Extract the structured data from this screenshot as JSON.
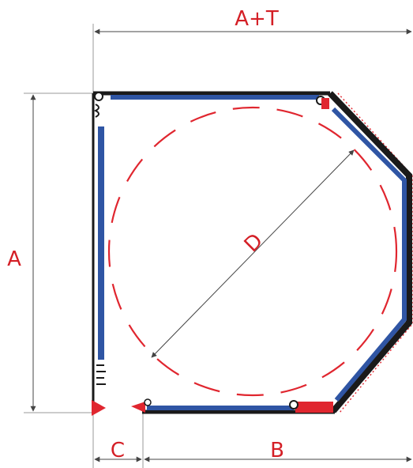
{
  "labels": {
    "top_width": "A+T",
    "left_height": "A",
    "diagonal": "D",
    "bottom_gap": "C",
    "bottom_width": "B"
  },
  "colors": {
    "label": "#d41f26",
    "glass": "#2f55a4",
    "frame": "#1a1a1a",
    "circle": "#e0262f",
    "hinge": "#e0262f"
  }
}
